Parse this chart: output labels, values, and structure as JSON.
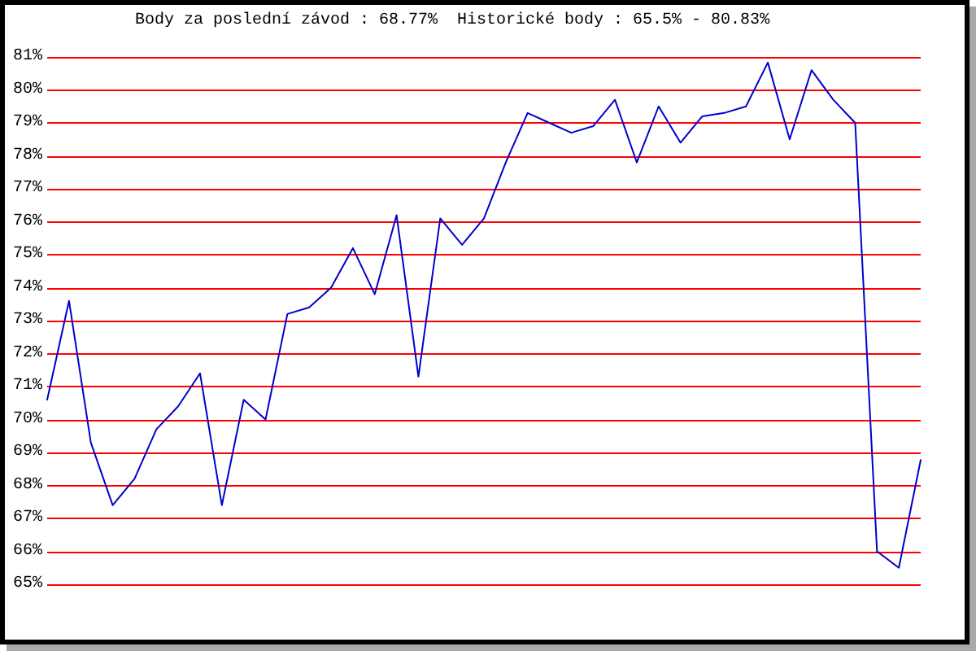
{
  "chart_data": {
    "type": "line",
    "title": "Body za poslední závod : 68.77%  Historické body : 65.5% - 80.83%",
    "categories": [
      null,
      null,
      null,
      null,
      null,
      null,
      null,
      null,
      null,
      null,
      null,
      null,
      null,
      null,
      null,
      null,
      null,
      null,
      null,
      null,
      null,
      null,
      null,
      null,
      null,
      null,
      null,
      null,
      null,
      null,
      null,
      null,
      null,
      null,
      null,
      null,
      null,
      null,
      null,
      null,
      null
    ],
    "series": [
      {
        "color": "#0000cc",
        "values": [
          70.6,
          73.6,
          69.3,
          67.4,
          68.2,
          69.7,
          70.4,
          71.4,
          67.4,
          70.6,
          70.0,
          73.2,
          73.4,
          74.0,
          75.2,
          73.8,
          76.2,
          71.3,
          76.1,
          75.3,
          76.1,
          77.8,
          79.3,
          79.0,
          78.7,
          78.9,
          79.7,
          77.8,
          79.5,
          78.4,
          79.2,
          79.3,
          79.5,
          80.83,
          78.5,
          80.6,
          79.7,
          79.0,
          66.0,
          65.5,
          68.77
        ]
      }
    ],
    "ylim": [
      65,
      81
    ],
    "yticks": [
      {
        "value": 65,
        "label": "65%"
      },
      {
        "value": 66,
        "label": "66%"
      },
      {
        "value": 67,
        "label": "67%"
      },
      {
        "value": 68,
        "label": "68%"
      },
      {
        "value": 69,
        "label": "69%"
      },
      {
        "value": 70,
        "label": "70%"
      },
      {
        "value": 71,
        "label": "71%"
      },
      {
        "value": 72,
        "label": "72%"
      },
      {
        "value": 73,
        "label": "73%"
      },
      {
        "value": 74,
        "label": "74%"
      },
      {
        "value": 75,
        "label": "75%"
      },
      {
        "value": 76,
        "label": "76%"
      },
      {
        "value": 77,
        "label": "77%"
      },
      {
        "value": 78,
        "label": "78%"
      },
      {
        "value": 79,
        "label": "79%"
      },
      {
        "value": 80,
        "label": "80%"
      },
      {
        "value": 81,
        "label": "81%"
      }
    ],
    "grid": "y",
    "marker": "none",
    "line_style": "solid",
    "tick_labels": "y"
  }
}
